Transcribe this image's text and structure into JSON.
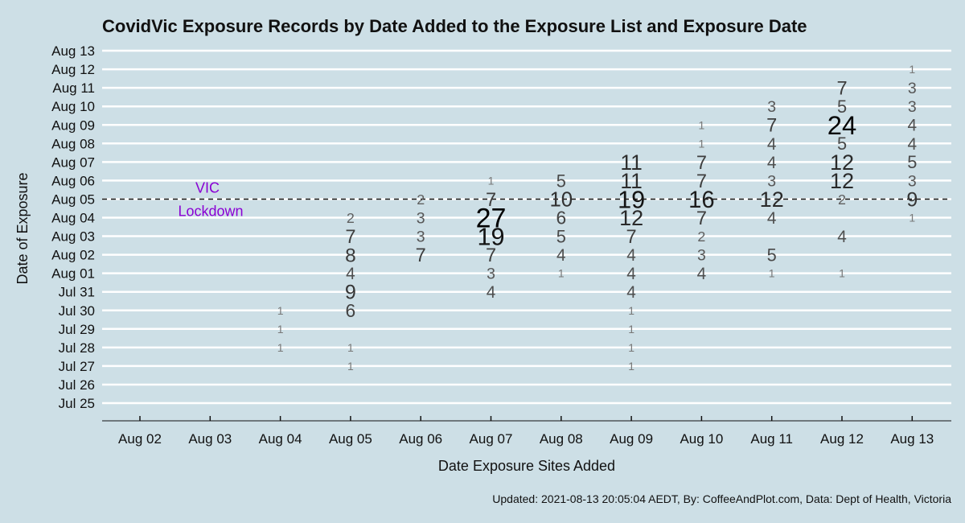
{
  "chart_data": {
    "type": "scatter",
    "title": "CovidVic Exposure Records by Date Added to the Exposure List and Exposure Date",
    "xlabel": "Date Exposure Sites Added",
    "ylabel": "Date of Exposure",
    "x_categories": [
      "Aug 02",
      "Aug 03",
      "Aug 04",
      "Aug 05",
      "Aug 06",
      "Aug 07",
      "Aug 08",
      "Aug 09",
      "Aug 10",
      "Aug 11",
      "Aug 12",
      "Aug 13"
    ],
    "y_categories": [
      "Jul 25",
      "Jul 26",
      "Jul 27",
      "Jul 28",
      "Jul 29",
      "Jul 30",
      "Jul 31",
      "Aug 01",
      "Aug 02",
      "Aug 03",
      "Aug 04",
      "Aug 05",
      "Aug 06",
      "Aug 07",
      "Aug 08",
      "Aug 09",
      "Aug 10",
      "Aug 11",
      "Aug 12",
      "Aug 13"
    ],
    "grid": true,
    "reference_line": {
      "y": "Aug 05",
      "style": "dashed"
    },
    "annotation": {
      "lines": [
        "VIC",
        "Lockdown"
      ],
      "color": "#8a00d4"
    },
    "points": [
      {
        "x": "Aug 04",
        "y": "Jul 28",
        "count": 1
      },
      {
        "x": "Aug 04",
        "y": "Jul 29",
        "count": 1
      },
      {
        "x": "Aug 04",
        "y": "Jul 30",
        "count": 1
      },
      {
        "x": "Aug 05",
        "y": "Jul 27",
        "count": 1
      },
      {
        "x": "Aug 05",
        "y": "Jul 28",
        "count": 1
      },
      {
        "x": "Aug 05",
        "y": "Jul 30",
        "count": 6
      },
      {
        "x": "Aug 05",
        "y": "Jul 31",
        "count": 9
      },
      {
        "x": "Aug 05",
        "y": "Aug 01",
        "count": 4
      },
      {
        "x": "Aug 05",
        "y": "Aug 02",
        "count": 8
      },
      {
        "x": "Aug 05",
        "y": "Aug 03",
        "count": 7
      },
      {
        "x": "Aug 05",
        "y": "Aug 04",
        "count": 2
      },
      {
        "x": "Aug 06",
        "y": "Aug 02",
        "count": 7
      },
      {
        "x": "Aug 06",
        "y": "Aug 03",
        "count": 3
      },
      {
        "x": "Aug 06",
        "y": "Aug 04",
        "count": 3
      },
      {
        "x": "Aug 06",
        "y": "Aug 05",
        "count": 2
      },
      {
        "x": "Aug 07",
        "y": "Jul 31",
        "count": 4
      },
      {
        "x": "Aug 07",
        "y": "Aug 01",
        "count": 3
      },
      {
        "x": "Aug 07",
        "y": "Aug 02",
        "count": 7
      },
      {
        "x": "Aug 07",
        "y": "Aug 03",
        "count": 19
      },
      {
        "x": "Aug 07",
        "y": "Aug 04",
        "count": 27
      },
      {
        "x": "Aug 07",
        "y": "Aug 05",
        "count": 7
      },
      {
        "x": "Aug 07",
        "y": "Aug 06",
        "count": 1
      },
      {
        "x": "Aug 08",
        "y": "Aug 01",
        "count": 1
      },
      {
        "x": "Aug 08",
        "y": "Aug 02",
        "count": 4
      },
      {
        "x": "Aug 08",
        "y": "Aug 03",
        "count": 5
      },
      {
        "x": "Aug 08",
        "y": "Aug 04",
        "count": 6
      },
      {
        "x": "Aug 08",
        "y": "Aug 05",
        "count": 10
      },
      {
        "x": "Aug 08",
        "y": "Aug 06",
        "count": 5
      },
      {
        "x": "Aug 09",
        "y": "Jul 27",
        "count": 1
      },
      {
        "x": "Aug 09",
        "y": "Jul 28",
        "count": 1
      },
      {
        "x": "Aug 09",
        "y": "Jul 29",
        "count": 1
      },
      {
        "x": "Aug 09",
        "y": "Jul 30",
        "count": 1
      },
      {
        "x": "Aug 09",
        "y": "Jul 31",
        "count": 4
      },
      {
        "x": "Aug 09",
        "y": "Aug 01",
        "count": 4
      },
      {
        "x": "Aug 09",
        "y": "Aug 02",
        "count": 4
      },
      {
        "x": "Aug 09",
        "y": "Aug 03",
        "count": 7
      },
      {
        "x": "Aug 09",
        "y": "Aug 04",
        "count": 12
      },
      {
        "x": "Aug 09",
        "y": "Aug 05",
        "count": 19
      },
      {
        "x": "Aug 09",
        "y": "Aug 06",
        "count": 11
      },
      {
        "x": "Aug 09",
        "y": "Aug 07",
        "count": 11
      },
      {
        "x": "Aug 10",
        "y": "Aug 01",
        "count": 4
      },
      {
        "x": "Aug 10",
        "y": "Aug 02",
        "count": 3
      },
      {
        "x": "Aug 10",
        "y": "Aug 03",
        "count": 2
      },
      {
        "x": "Aug 10",
        "y": "Aug 04",
        "count": 7
      },
      {
        "x": "Aug 10",
        "y": "Aug 05",
        "count": 16
      },
      {
        "x": "Aug 10",
        "y": "Aug 06",
        "count": 7
      },
      {
        "x": "Aug 10",
        "y": "Aug 07",
        "count": 7
      },
      {
        "x": "Aug 10",
        "y": "Aug 08",
        "count": 1
      },
      {
        "x": "Aug 10",
        "y": "Aug 09",
        "count": 1
      },
      {
        "x": "Aug 11",
        "y": "Aug 01",
        "count": 1
      },
      {
        "x": "Aug 11",
        "y": "Aug 02",
        "count": 5
      },
      {
        "x": "Aug 11",
        "y": "Aug 04",
        "count": 4
      },
      {
        "x": "Aug 11",
        "y": "Aug 05",
        "count": 12
      },
      {
        "x": "Aug 11",
        "y": "Aug 06",
        "count": 3
      },
      {
        "x": "Aug 11",
        "y": "Aug 07",
        "count": 4
      },
      {
        "x": "Aug 11",
        "y": "Aug 08",
        "count": 4
      },
      {
        "x": "Aug 11",
        "y": "Aug 09",
        "count": 7
      },
      {
        "x": "Aug 11",
        "y": "Aug 10",
        "count": 3
      },
      {
        "x": "Aug 12",
        "y": "Aug 01",
        "count": 1
      },
      {
        "x": "Aug 12",
        "y": "Aug 03",
        "count": 4
      },
      {
        "x": "Aug 12",
        "y": "Aug 05",
        "count": 2
      },
      {
        "x": "Aug 12",
        "y": "Aug 06",
        "count": 12
      },
      {
        "x": "Aug 12",
        "y": "Aug 07",
        "count": 12
      },
      {
        "x": "Aug 12",
        "y": "Aug 08",
        "count": 5
      },
      {
        "x": "Aug 12",
        "y": "Aug 09",
        "count": 24
      },
      {
        "x": "Aug 12",
        "y": "Aug 10",
        "count": 5
      },
      {
        "x": "Aug 12",
        "y": "Aug 11",
        "count": 7
      },
      {
        "x": "Aug 13",
        "y": "Aug 04",
        "count": 1
      },
      {
        "x": "Aug 13",
        "y": "Aug 05",
        "count": 9
      },
      {
        "x": "Aug 13",
        "y": "Aug 06",
        "count": 3
      },
      {
        "x": "Aug 13",
        "y": "Aug 07",
        "count": 5
      },
      {
        "x": "Aug 13",
        "y": "Aug 08",
        "count": 4
      },
      {
        "x": "Aug 13",
        "y": "Aug 09",
        "count": 4
      },
      {
        "x": "Aug 13",
        "y": "Aug 10",
        "count": 3
      },
      {
        "x": "Aug 13",
        "y": "Aug 11",
        "count": 3
      },
      {
        "x": "Aug 13",
        "y": "Aug 12",
        "count": 1
      }
    ]
  },
  "caption": "Updated: 2021-08-13 20:05:04 AEDT, By: CoffeeAndPlot.com, Data: Dept of Health, Victoria",
  "colors": {
    "background": "#cddfe6",
    "gridline": "#ffffff",
    "text": "#111111",
    "annotation": "#8a00d4"
  }
}
